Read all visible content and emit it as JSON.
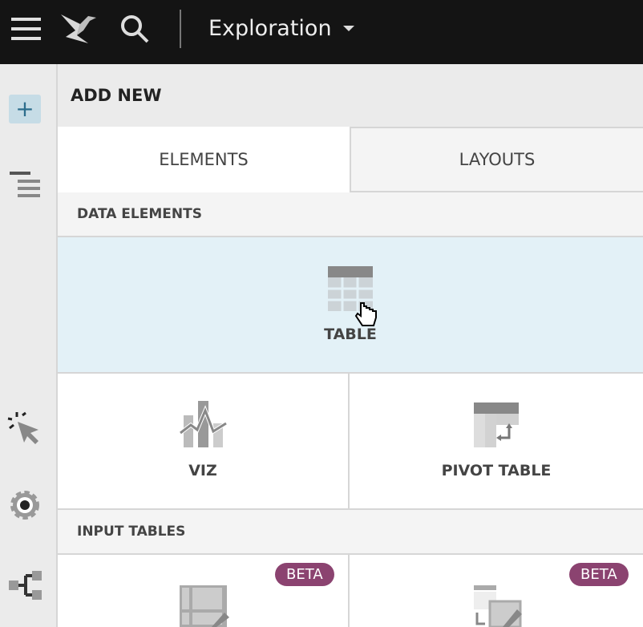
{
  "topbar": {
    "title": "Exploration",
    "icons": [
      "menu-icon",
      "logo-icon",
      "search-icon",
      "caret-down-icon"
    ]
  },
  "rail": {
    "icons": [
      "plus-icon",
      "outline-icon",
      "interaction-icon",
      "settings-icon",
      "hierarchy-icon"
    ]
  },
  "panel": {
    "header": "ADD NEW",
    "tabs": [
      {
        "label": "ELEMENTS",
        "active": true
      },
      {
        "label": "LAYOUTS",
        "active": false
      }
    ],
    "sections": [
      {
        "title": "DATA ELEMENTS",
        "items": [
          {
            "label": "TABLE",
            "hovered": true
          },
          {
            "label": "VIZ"
          },
          {
            "label": "PIVOT TABLE"
          }
        ]
      },
      {
        "title": "INPUT TABLES",
        "items": [
          {
            "badge": "BETA"
          },
          {
            "badge": "BETA"
          }
        ]
      }
    ]
  },
  "colors": {
    "topbar": "#141414",
    "hover": "#e3f1f7",
    "beta": "#8b4370"
  }
}
